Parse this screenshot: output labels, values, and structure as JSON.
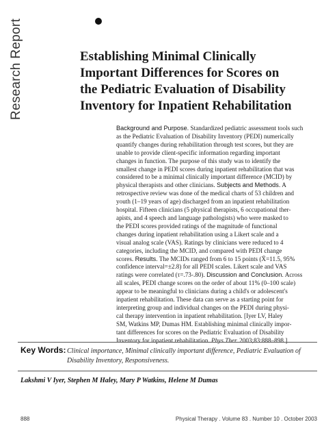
{
  "section_label": "Research Report",
  "title_lines": [
    "Establishing Minimal Clinically",
    "Important Differences for Scores on",
    "the Pediatric Evaluation of Disability",
    "Inventory for Inpatient Rehabilitation"
  ],
  "abstract": {
    "background_heading": "Background and Purpose.",
    "methods_heading": "Subjects and Methods.",
    "results_heading": "Results.",
    "discussion_heading": "Discussion and Conclusion.",
    "citation_journal": "Phys Ther.",
    "lines": [
      "Standardized pediatric assessment tools such",
      "as the Pediatric Evaluation of Disability Inventory (PEDI) numerically",
      "quantify changes during rehabilitation through test scores, but they are",
      "unable to provide client-specific information regarding important",
      "changes in function. The purpose of this study was to identify the",
      "smallest change in PEDI scores during inpatient rehabilitation that was",
      "considered to be a minimal clinically important difference (MCID) by",
      "physical therapists and other clinicians.",
      "A",
      "retrospective review was done of the medical charts of 53 children and",
      "youth (1–19 years of age) discharged from an inpatient rehabilitation",
      "hospital. Fifteen clinicians (5 physical therapists, 6 occupational ther-",
      "apists, and 4 speech and language pathologists) who were masked to",
      "the PEDI scores provided ratings of the magnitude of functional",
      "changes during inpatient rehabilitation using a Likert scale and a",
      "visual analog scale (VAS). Ratings by clinicians were reduced to 4",
      "categories, including the MCID, and compared with PEDI change",
      "scores.",
      "The MCIDs ranged from 6 to 15 points (X̄=11.5, 95%",
      "confidence interval=±2.8) for all PEDI scales. Likert scale and VAS",
      "ratings were correlated (τ=.73-.80).",
      "Across",
      "all scales, PEDI change scores on the order of about 11% (0–100 scale)",
      "appear to be meaningful to clinicians during a child's or adolescent's",
      "inpatient rehabilitation. These data can serve as a starting point for",
      "interpreting group and individual changes on the PEDI during physi-",
      "cal therapy intervention in inpatient rehabilitation. [Iyer LV, Haley",
      "SM, Watkins MP, Dumas HM. Establishing minimal clinically impor-",
      "tant differences for scores on the Pediatric Evaluation of Disability",
      "Inventory for inpatient rehabilitation.",
      "2003;83:888–898.]"
    ]
  },
  "key_words": {
    "heading": "Key Words:",
    "lines": [
      "Clinical importance, Minimal clinically important difference, Pediatric Evaluation of",
      "Disability Inventory, Responsiveness."
    ]
  },
  "authors": "Lakshmi V Iyer, Stephen M Haley, Mary P Watkins, Helene M Dumas",
  "footer": {
    "page_number": "888",
    "journal": "Physical Therapy . Volume 83 . Number 10 . October 2003"
  }
}
